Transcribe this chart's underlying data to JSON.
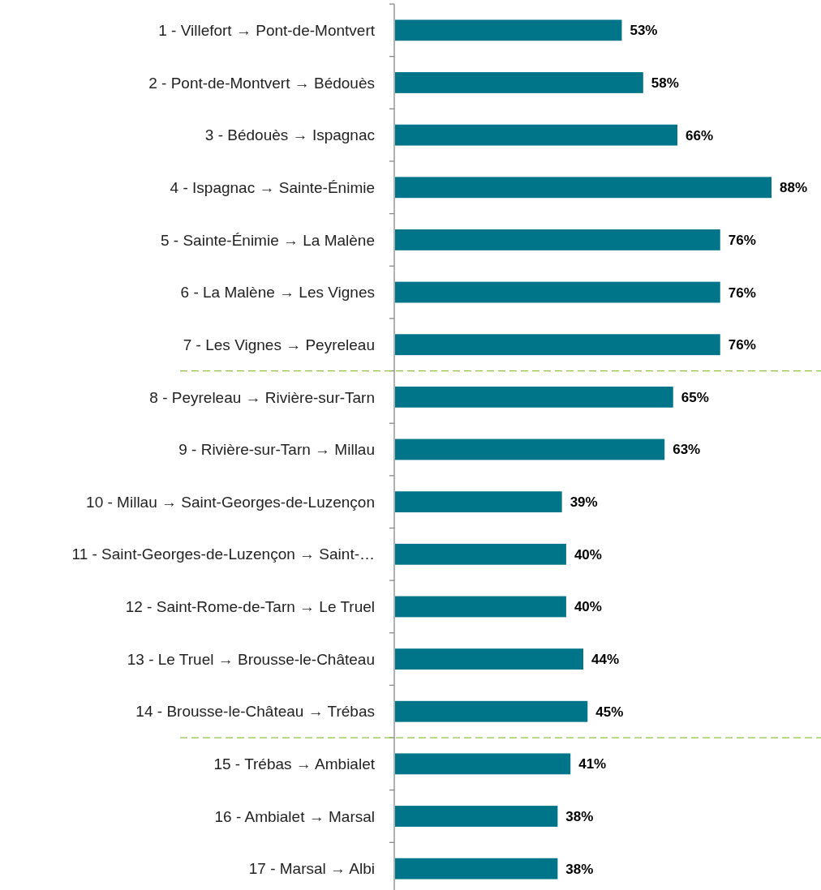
{
  "chart_data": {
    "type": "bar",
    "orientation": "horizontal",
    "categories": [
      "1 - Villefort → Pont-de-Montvert",
      "2 - Pont-de-Montvert → Bédouès",
      "3 - Bédouès → Ispagnac",
      "4 - Ispagnac → Sainte-Énimie",
      "5 - Sainte-Énimie → La Malène",
      "6 - La Malène → Les Vignes",
      "7 - Les Vignes → Peyreleau",
      "8 - Peyreleau → Rivière-sur-Tarn",
      "9 - Rivière-sur-Tarn → Millau",
      "10 - Millau → Saint-Georges-de-Luzençon",
      "11 - Saint-Georges-de-Luzençon → Saint-…",
      "12 - Saint-Rome-de-Tarn → Le Truel",
      "13 - Le Truel → Brousse-le-Château",
      "14 - Brousse-le-Château → Trébas",
      "15 - Trébas → Ambialet",
      "16 - Ambialet → Marsal",
      "17 - Marsal → Albi"
    ],
    "values": [
      53,
      58,
      66,
      88,
      76,
      76,
      76,
      65,
      63,
      39,
      40,
      40,
      44,
      45,
      41,
      38,
      38
    ],
    "value_labels": [
      "53%",
      "58%",
      "66%",
      "88%",
      "76%",
      "76%",
      "76%",
      "65%",
      "63%",
      "39%",
      "40%",
      "40%",
      "44%",
      "45%",
      "41%",
      "38%",
      "38%"
    ],
    "color": "#00758a"
  }
}
